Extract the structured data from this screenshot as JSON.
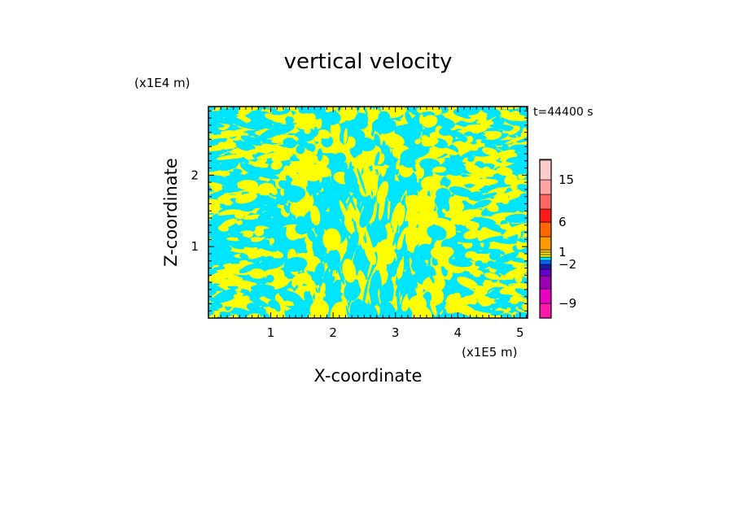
{
  "chart_data": {
    "type": "heatmap",
    "title": "vertical velocity",
    "xlabel": "X-coordinate",
    "ylabel": "Z-coordinate",
    "x_unit": "(x1E5 m)",
    "y_unit": "(x1E4 m)",
    "time_label": "t=44400 s",
    "xlim": [
      0,
      5.12
    ],
    "ylim": [
      0,
      2.96
    ],
    "x_ticks": [
      1,
      2,
      3,
      4,
      5
    ],
    "y_ticks": [
      1,
      2
    ],
    "x_tick_labels": [
      "1",
      "2",
      "3",
      "4",
      "5"
    ],
    "y_tick_labels": [
      "1",
      "2"
    ],
    "field_colors": {
      "positive": "#ffff00",
      "negative": "#00e5ff"
    },
    "colorbar": {
      "levels": [
        -12,
        -9,
        -6,
        -4,
        -3,
        -2,
        -1,
        0,
        0.5,
        1,
        2,
        4,
        6,
        9,
        12,
        15,
        20,
        30
      ],
      "colors": [
        "#ff1aa8",
        "#e600c4",
        "#9900b3",
        "#6600cc",
        "#1a1aa6",
        "#0066ff",
        "#00e5ff",
        "#ffff00",
        "#ffe600",
        "#ffcc00",
        "#ff9900",
        "#ff6600",
        "#ff1a1a",
        "#ff6666",
        "#ffa3a3",
        "#ffcccc",
        "#fff0ee"
      ],
      "tick_values": [
        15,
        6,
        1,
        -2,
        -9
      ],
      "tick_labels": [
        "15",
        "6",
        "1",
        "−2",
        "−9"
      ]
    }
  }
}
